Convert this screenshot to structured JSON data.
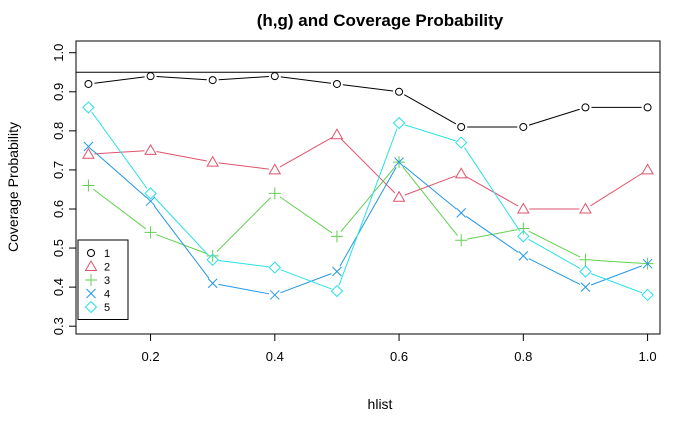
{
  "chart_data": {
    "type": "line",
    "title": "(h,g) and Coverage Probability",
    "xlabel": "hlist",
    "ylabel": "Coverage Probability",
    "xlim": [
      0.08,
      1.02
    ],
    "ylim": [
      0.28,
      1.03
    ],
    "x_ticks": [
      0.2,
      0.4,
      0.6,
      0.8,
      1.0
    ],
    "x_tick_labels": [
      "0.2",
      "0.4",
      "0.6",
      "0.8",
      "1.0"
    ],
    "y_ticks": [
      0.3,
      0.4,
      0.5,
      0.6,
      0.7,
      0.8,
      0.9,
      1.0
    ],
    "y_tick_labels": [
      "0.3",
      "0.4",
      "0.5",
      "0.6",
      "0.7",
      "0.8",
      "0.9",
      "1.0"
    ],
    "reference_line": 0.95,
    "grid": false,
    "legend_position": "bottom-left",
    "x": [
      0.1,
      0.2,
      0.3,
      0.4,
      0.5,
      0.6,
      0.7,
      0.8,
      0.9,
      1.0
    ],
    "series": [
      {
        "name": "1",
        "color": "#000000",
        "marker": "circle",
        "values": [
          0.92,
          0.94,
          0.93,
          0.94,
          0.92,
          0.9,
          0.81,
          0.81,
          0.86,
          0.86
        ]
      },
      {
        "name": "2",
        "color": "#DF536B",
        "marker": "triangle",
        "values": [
          0.74,
          0.75,
          0.72,
          0.7,
          0.79,
          0.63,
          0.69,
          0.6,
          0.6,
          0.7
        ]
      },
      {
        "name": "3",
        "color": "#61D04F",
        "marker": "plus",
        "values": [
          0.66,
          0.54,
          0.48,
          0.64,
          0.53,
          0.72,
          0.52,
          0.55,
          0.47,
          0.46
        ]
      },
      {
        "name": "4",
        "color": "#2297E6",
        "marker": "cross",
        "values": [
          0.76,
          0.62,
          0.41,
          0.38,
          0.44,
          0.72,
          0.59,
          0.48,
          0.4,
          0.46
        ]
      },
      {
        "name": "5",
        "color": "#28E2E5",
        "marker": "diamond",
        "values": [
          0.86,
          0.64,
          0.47,
          0.45,
          0.39,
          0.82,
          0.77,
          0.53,
          0.44,
          0.38
        ]
      }
    ]
  }
}
